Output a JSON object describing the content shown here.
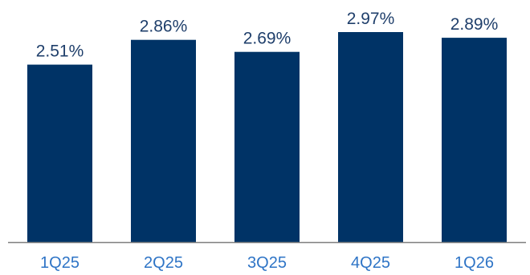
{
  "chart_data": {
    "type": "bar",
    "categories": [
      "1Q25",
      "2Q25",
      "3Q25",
      "4Q25",
      "1Q26"
    ],
    "values": [
      2.51,
      2.86,
      2.69,
      2.97,
      2.89
    ],
    "data_labels": [
      "2.51%",
      "2.86%",
      "2.69%",
      "2.97%",
      "2.89%"
    ],
    "title": "",
    "xlabel": "",
    "ylabel": "",
    "ylim": [
      0,
      3.0
    ],
    "grid": false,
    "legend": "none",
    "colors": {
      "bar": "#003366",
      "axis": "#7f7f7f",
      "label_text": "#1f3f6b",
      "tick_text": "#2e74c6"
    }
  }
}
